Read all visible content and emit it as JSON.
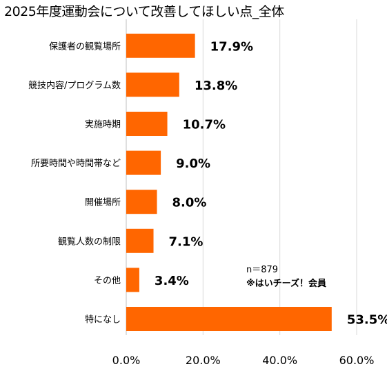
{
  "chart_data": {
    "type": "bar",
    "orientation": "horizontal",
    "title": "2025年度運動会について改善してほしい点_全体",
    "categories": [
      "保護者の観覧場所",
      "競技内容/プログラム数",
      "実施時期",
      "所要時間や時間帯など",
      "開催場所",
      "観覧人数の制限",
      "その他",
      "特になし"
    ],
    "values": [
      17.9,
      13.8,
      10.7,
      9.0,
      8.0,
      7.1,
      3.4,
      53.5
    ],
    "value_labels": [
      "17.9%",
      "13.8%",
      "10.7%",
      "9.0%",
      "8.0%",
      "7.1%",
      "3.4%",
      "53.5%"
    ],
    "xlim": [
      0,
      60
    ],
    "x_ticks": [
      "0.0%",
      "20.0%",
      "40.0%",
      "60.0%"
    ],
    "x_tick_values": [
      0,
      20,
      40,
      60
    ],
    "grid": true,
    "bar_color": "#ff6600",
    "annotation": {
      "line1": "n＝879",
      "line2": "※はいチーズ！会員"
    }
  }
}
